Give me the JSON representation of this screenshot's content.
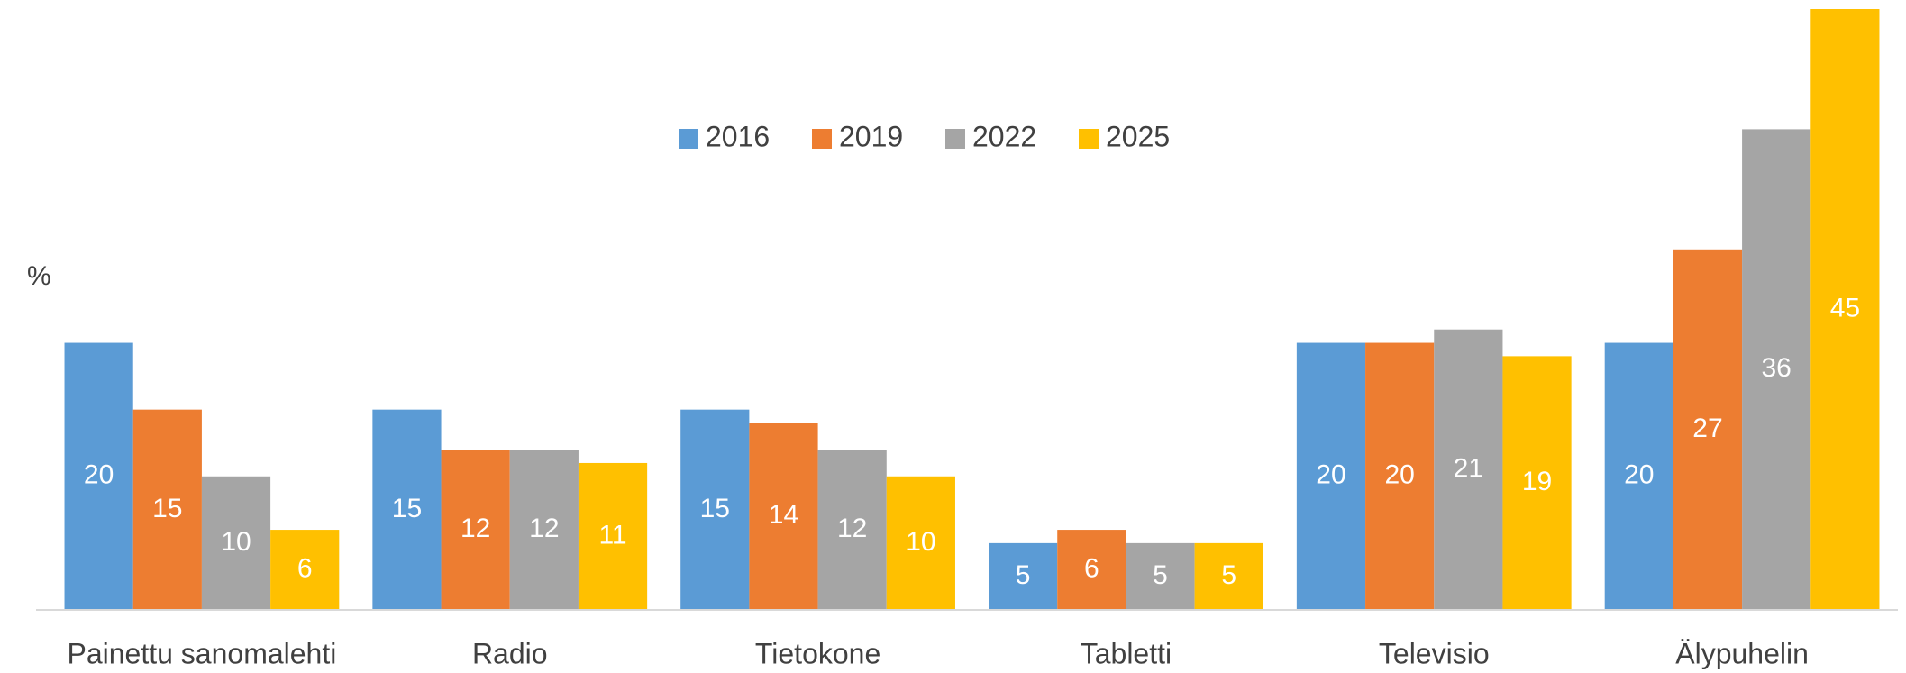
{
  "chart_data": {
    "type": "bar",
    "y_label": "%",
    "categories": [
      "Painettu sanomalehti",
      "Radio",
      "Tietokone",
      "Tabletti",
      "Televisio",
      "Älypuhelin"
    ],
    "series": [
      {
        "name": "2016",
        "color": "#5b9bd5",
        "values": [
          20,
          15,
          15,
          5,
          20,
          20
        ]
      },
      {
        "name": "2019",
        "color": "#ed7d31",
        "values": [
          15,
          12,
          14,
          6,
          20,
          27
        ]
      },
      {
        "name": "2022",
        "color": "#a5a5a5",
        "values": [
          10,
          12,
          12,
          5,
          21,
          36
        ]
      },
      {
        "name": "2025",
        "color": "#ffc000",
        "values": [
          6,
          11,
          10,
          5,
          19,
          45
        ]
      }
    ],
    "ylim": [
      0,
      45
    ],
    "legend": "top"
  }
}
